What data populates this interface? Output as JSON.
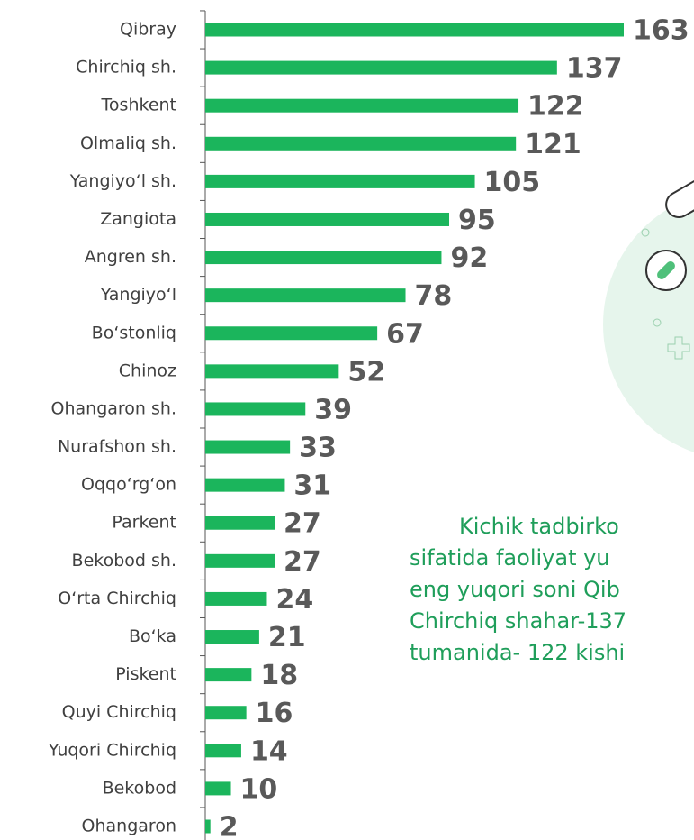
{
  "chart_data": {
    "type": "bar",
    "orientation": "horizontal",
    "color": "#1bb55c",
    "categories": [
      "Qibray",
      "Chirchiq sh.",
      "Toshkent",
      "Olmaliq sh.",
      "Yangiyo‘l sh.",
      "Zangiota",
      "Angren sh.",
      "Yangiyo‘l",
      "Bo‘stonliq",
      "Chinoz",
      "Ohangaron sh.",
      "Nurafshon sh.",
      "Oqqo‘rg‘on",
      "Parkent",
      "Bekobod sh.",
      "O‘rta Chirchiq",
      "Bo‘ka",
      "Piskent",
      "Quyi Chirchiq",
      "Yuqori Chirchiq",
      "Bekobod",
      "Ohangaron"
    ],
    "values": [
      163,
      137,
      122,
      121,
      105,
      95,
      92,
      78,
      67,
      52,
      39,
      33,
      31,
      27,
      27,
      24,
      21,
      18,
      16,
      14,
      10,
      2
    ]
  },
  "paragraph": {
    "lines": [
      "Kichik   tadbirko",
      "sifatida  faoliyat  yu",
      "eng yuqori soni Qib",
      "Chirchiq  shahar-137",
      "tumanida- 122 kishi"
    ]
  }
}
